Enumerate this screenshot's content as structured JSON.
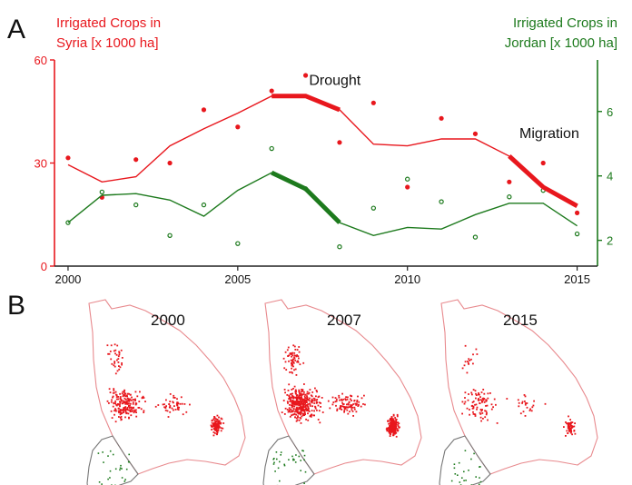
{
  "panels": {
    "a": "A",
    "b": "B"
  },
  "chart_data": {
    "type": "line",
    "title": "",
    "xlabel": "",
    "x": [
      2000,
      2001,
      2002,
      2003,
      2004,
      2005,
      2006,
      2007,
      2008,
      2009,
      2010,
      2011,
      2012,
      2013,
      2014,
      2015
    ],
    "xlim": [
      1999.6,
      2015.6
    ],
    "xticks": [
      "2000",
      "2005",
      "2010",
      "2015"
    ],
    "xtick_values": [
      2000,
      2005,
      2010,
      2015
    ],
    "y_left": {
      "label_line1": "Irrigated Crops in",
      "label_line2": "Syria [x 1000 ha]",
      "ylim": [
        0,
        60
      ],
      "ticks": [
        "0",
        "30",
        "60"
      ],
      "tick_values": [
        0,
        30,
        60
      ],
      "color": "#e8171d"
    },
    "y_right": {
      "label_line1": "Irrigated Crops in",
      "label_line2": "Jordan [x 1000 ha]",
      "ylim": [
        1.2,
        7.6
      ],
      "ticks": [
        "2",
        "4",
        "6"
      ],
      "tick_values": [
        2,
        4,
        6
      ],
      "color": "#1d7a1d"
    },
    "series": [
      {
        "axis": "left",
        "color": "#e8171d",
        "points": [
          31.5,
          20,
          31,
          30,
          45.5,
          40.5,
          51,
          55.5,
          36,
          47.5,
          23,
          43,
          38.5,
          24.5,
          30,
          15.5
        ],
        "trend": [
          29.5,
          24.5,
          26,
          35,
          40,
          44.5,
          49.5,
          49.5,
          45.5,
          35.5,
          35,
          37,
          37,
          32,
          23,
          17.5
        ]
      },
      {
        "axis": "right",
        "color": "#1d7a1d",
        "points": [
          2.55,
          3.5,
          3.1,
          2.15,
          3.1,
          1.9,
          4.85,
          3.6,
          1.8,
          3.0,
          3.9,
          3.2,
          2.1,
          3.35,
          3.55,
          2.2
        ],
        "trend": [
          2.55,
          3.4,
          3.45,
          3.25,
          2.75,
          3.55,
          4.1,
          3.6,
          2.55,
          2.15,
          2.4,
          2.35,
          2.8,
          3.15,
          3.15,
          2.45
        ]
      }
    ],
    "highlights": [
      {
        "axis": "left",
        "x_from": 2006,
        "x_to": 2008,
        "label": "Drought"
      },
      {
        "axis": "right",
        "x_from": 2006,
        "x_to": 2008,
        "label": ""
      },
      {
        "axis": "left",
        "x_from": 2013,
        "x_to": 2015,
        "label": "Migration"
      }
    ]
  },
  "maps": [
    {
      "year": "2000",
      "density": 0.55
    },
    {
      "year": "2007",
      "density": 1.0
    },
    {
      "year": "2015",
      "density": 0.25
    }
  ],
  "colors": {
    "syria": "#e8171d",
    "jordan": "#1d7a1d",
    "border_syria": "#e88a8e",
    "border_jordan": "#777777"
  }
}
